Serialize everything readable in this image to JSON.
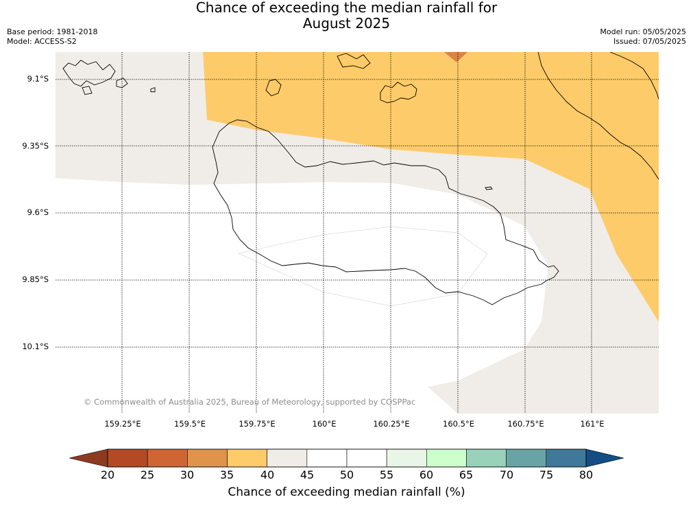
{
  "title": {
    "line1": "Chance of exceeding the median rainfall for",
    "line2": "August 2025"
  },
  "meta": {
    "base_period": "Base period: 1981-2018",
    "model": "Model: ACCESS-S2",
    "model_run": "Model run: 05/05/2025",
    "issued": "Issued: 07/05/2025"
  },
  "map": {
    "longitude_labels": [
      "159.25°E",
      "159.5°E",
      "159.75°E",
      "160°E",
      "160.25°E",
      "160.5°E",
      "160.75°E",
      "161°E"
    ],
    "latitude_labels": [
      "9.1°S",
      "9.35°S",
      "9.6°S",
      "9.85°S",
      "10.1°S"
    ],
    "copyright": "© Commonwealth of Australia 2025, Bureau of Meteorology, supported by COSPPac",
    "category_colors": {
      "30-35": "#d9834a",
      "35-40": "#fdcb69",
      "40-45": "#f0ece7",
      "45-55": "#ffffff"
    }
  },
  "colorbar": {
    "ticks": [
      "20",
      "25",
      "30",
      "35",
      "40",
      "45",
      "50",
      "55",
      "60",
      "65",
      "70",
      "75",
      "80"
    ],
    "colors": [
      "#b34a25",
      "#cf6532",
      "#e0934a",
      "#fdcb69",
      "#f0ece7",
      "#ffffff",
      "#ffffff",
      "#e9f5e6",
      "#ccffcc",
      "#99d1bb",
      "#6aa3a5",
      "#3f7898"
    ],
    "under_color": "#8e3a21",
    "over_color": "#134d83",
    "label": "Chance of exceeding median rainfall (%)"
  }
}
